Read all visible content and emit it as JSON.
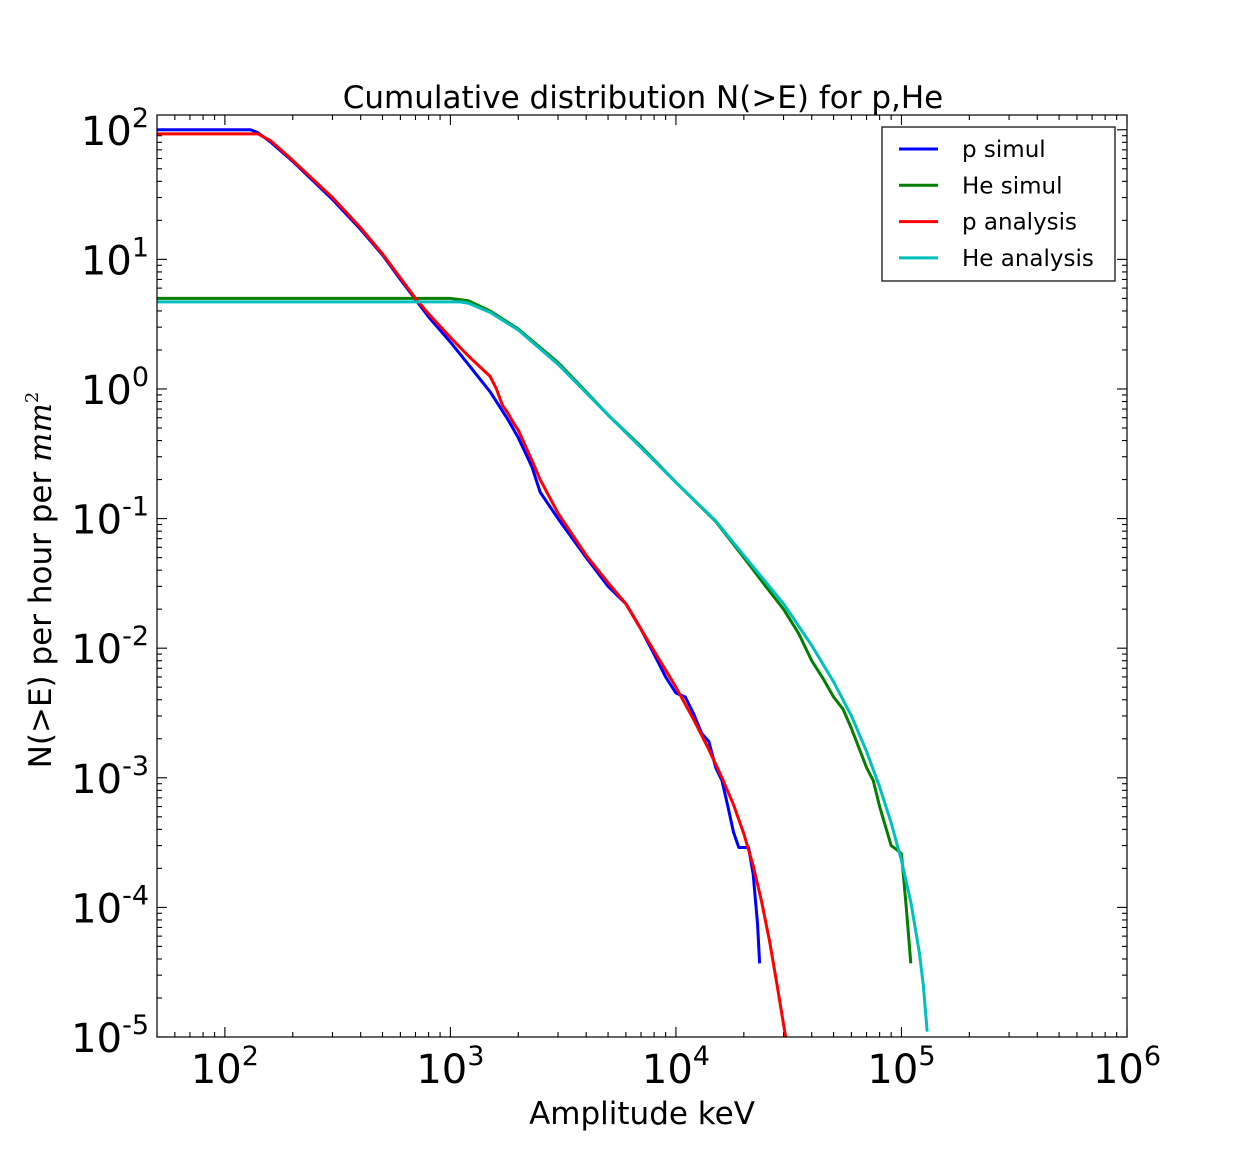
{
  "chart_data": {
    "type": "line",
    "title": "Cumulative distribution N(>E) for p,He",
    "xlabel": "Amplitude keV",
    "ylabel_prefix": "N(>E) per hour per ",
    "ylabel_unit": "mm",
    "ylabel_unit_exp": "2",
    "xscale": "log",
    "yscale": "log",
    "xlim": [
      50,
      1000000
    ],
    "ylim": [
      1e-05,
      130
    ],
    "legend_position": "top-right",
    "x_ticks": [
      {
        "value": 100,
        "base": "10",
        "exp": "2"
      },
      {
        "value": 1000,
        "base": "10",
        "exp": "3"
      },
      {
        "value": 10000,
        "base": "10",
        "exp": "4"
      },
      {
        "value": 100000,
        "base": "10",
        "exp": "5"
      },
      {
        "value": 1000000,
        "base": "10",
        "exp": "6"
      }
    ],
    "y_ticks": [
      {
        "value": 100,
        "base": "10",
        "exp": "2"
      },
      {
        "value": 10,
        "base": "10",
        "exp": "1"
      },
      {
        "value": 1,
        "base": "10",
        "exp": "0"
      },
      {
        "value": 0.1,
        "base": "10",
        "exp": "-1"
      },
      {
        "value": 0.01,
        "base": "10",
        "exp": "-2"
      },
      {
        "value": 0.001,
        "base": "10",
        "exp": "-3"
      },
      {
        "value": 0.0001,
        "base": "10",
        "exp": "-4"
      },
      {
        "value": 1e-05,
        "base": "10",
        "exp": "-5"
      }
    ],
    "series": [
      {
        "name": "p simul",
        "color": "#0000ff",
        "points": [
          [
            50,
            100
          ],
          [
            130,
            100
          ],
          [
            140,
            95
          ],
          [
            160,
            80
          ],
          [
            200,
            57
          ],
          [
            300,
            29
          ],
          [
            400,
            17
          ],
          [
            500,
            10.8
          ],
          [
            600,
            7
          ],
          [
            700,
            4.9
          ],
          [
            800,
            3.6
          ],
          [
            1000,
            2.3
          ],
          [
            1200,
            1.55
          ],
          [
            1500,
            0.95
          ],
          [
            1800,
            0.58
          ],
          [
            2000,
            0.42
          ],
          [
            2300,
            0.25
          ],
          [
            2500,
            0.16
          ],
          [
            3000,
            0.1
          ],
          [
            4000,
            0.05
          ],
          [
            5000,
            0.03
          ],
          [
            6000,
            0.022
          ],
          [
            7000,
            0.014
          ],
          [
            8000,
            0.009
          ],
          [
            9000,
            0.006
          ],
          [
            10000,
            0.0045
          ],
          [
            11000,
            0.0042
          ],
          [
            12000,
            0.0031
          ],
          [
            13000,
            0.0022
          ],
          [
            14000,
            0.0019
          ],
          [
            15000,
            0.0012
          ],
          [
            16000,
            0.00095
          ],
          [
            17000,
            0.0006
          ],
          [
            18000,
            0.00038
          ],
          [
            19000,
            0.00029
          ],
          [
            21000,
            0.00029
          ],
          [
            22000,
            0.00018
          ],
          [
            23000,
            7.5e-05
          ],
          [
            23500,
            3.7e-05
          ]
        ]
      },
      {
        "name": "He simul",
        "color": "#008000",
        "points": [
          [
            50,
            5
          ],
          [
            1000,
            5
          ],
          [
            1200,
            4.8
          ],
          [
            1500,
            4
          ],
          [
            2000,
            2.9
          ],
          [
            3000,
            1.6
          ],
          [
            4000,
            0.95
          ],
          [
            5000,
            0.63
          ],
          [
            7000,
            0.36
          ],
          [
            10000,
            0.19
          ],
          [
            15000,
            0.095
          ],
          [
            20000,
            0.05
          ],
          [
            25000,
            0.03
          ],
          [
            30000,
            0.02
          ],
          [
            35000,
            0.013
          ],
          [
            40000,
            0.008
          ],
          [
            45000,
            0.0058
          ],
          [
            50000,
            0.0042
          ],
          [
            55000,
            0.0034
          ],
          [
            60000,
            0.0024
          ],
          [
            70000,
            0.0012
          ],
          [
            75000,
            0.00095
          ],
          [
            80000,
            0.0006
          ],
          [
            85000,
            0.00042
          ],
          [
            90000,
            0.0003
          ],
          [
            95000,
            0.00028
          ],
          [
            100000,
            0.00026
          ],
          [
            105000,
            0.0001
          ],
          [
            110000,
            3.7e-05
          ]
        ]
      },
      {
        "name": "p analysis",
        "color": "#ff0000",
        "points": [
          [
            50,
            93
          ],
          [
            140,
            93
          ],
          [
            160,
            82
          ],
          [
            200,
            58
          ],
          [
            300,
            30
          ],
          [
            400,
            17.5
          ],
          [
            500,
            11
          ],
          [
            600,
            7.2
          ],
          [
            700,
            5
          ],
          [
            800,
            3.8
          ],
          [
            1000,
            2.5
          ],
          [
            1200,
            1.8
          ],
          [
            1500,
            1.25
          ],
          [
            1600,
            1
          ],
          [
            1700,
            0.75
          ],
          [
            1800,
            0.65
          ],
          [
            1900,
            0.55
          ],
          [
            2000,
            0.48
          ],
          [
            2300,
            0.28
          ],
          [
            2500,
            0.2
          ],
          [
            3000,
            0.11
          ],
          [
            4000,
            0.052
          ],
          [
            5000,
            0.032
          ],
          [
            6000,
            0.022
          ],
          [
            8000,
            0.0095
          ],
          [
            10000,
            0.005
          ],
          [
            12000,
            0.0028
          ],
          [
            14000,
            0.00165
          ],
          [
            16000,
            0.001
          ],
          [
            18000,
            0.00062
          ],
          [
            20000,
            0.00037
          ],
          [
            22000,
            0.00021
          ],
          [
            24000,
            0.00011
          ],
          [
            26000,
            5.5e-05
          ],
          [
            28000,
            2.6e-05
          ],
          [
            30000,
            1.25e-05
          ],
          [
            31000,
            9e-06
          ]
        ]
      },
      {
        "name": "He analysis",
        "color": "#00bfbf",
        "points": [
          [
            50,
            4.7
          ],
          [
            1100,
            4.7
          ],
          [
            1200,
            4.6
          ],
          [
            1500,
            3.9
          ],
          [
            2000,
            2.85
          ],
          [
            3000,
            1.55
          ],
          [
            5000,
            0.63
          ],
          [
            10000,
            0.19
          ],
          [
            15000,
            0.096
          ],
          [
            20000,
            0.052
          ],
          [
            30000,
            0.022
          ],
          [
            40000,
            0.0105
          ],
          [
            50000,
            0.0055
          ],
          [
            60000,
            0.003
          ],
          [
            70000,
            0.0016
          ],
          [
            80000,
            0.00085
          ],
          [
            90000,
            0.00045
          ],
          [
            100000,
            0.00023
          ],
          [
            110000,
            0.00011
          ],
          [
            120000,
            4.5e-05
          ],
          [
            125000,
            2.5e-05
          ],
          [
            130000,
            1.1e-05
          ]
        ]
      }
    ]
  }
}
